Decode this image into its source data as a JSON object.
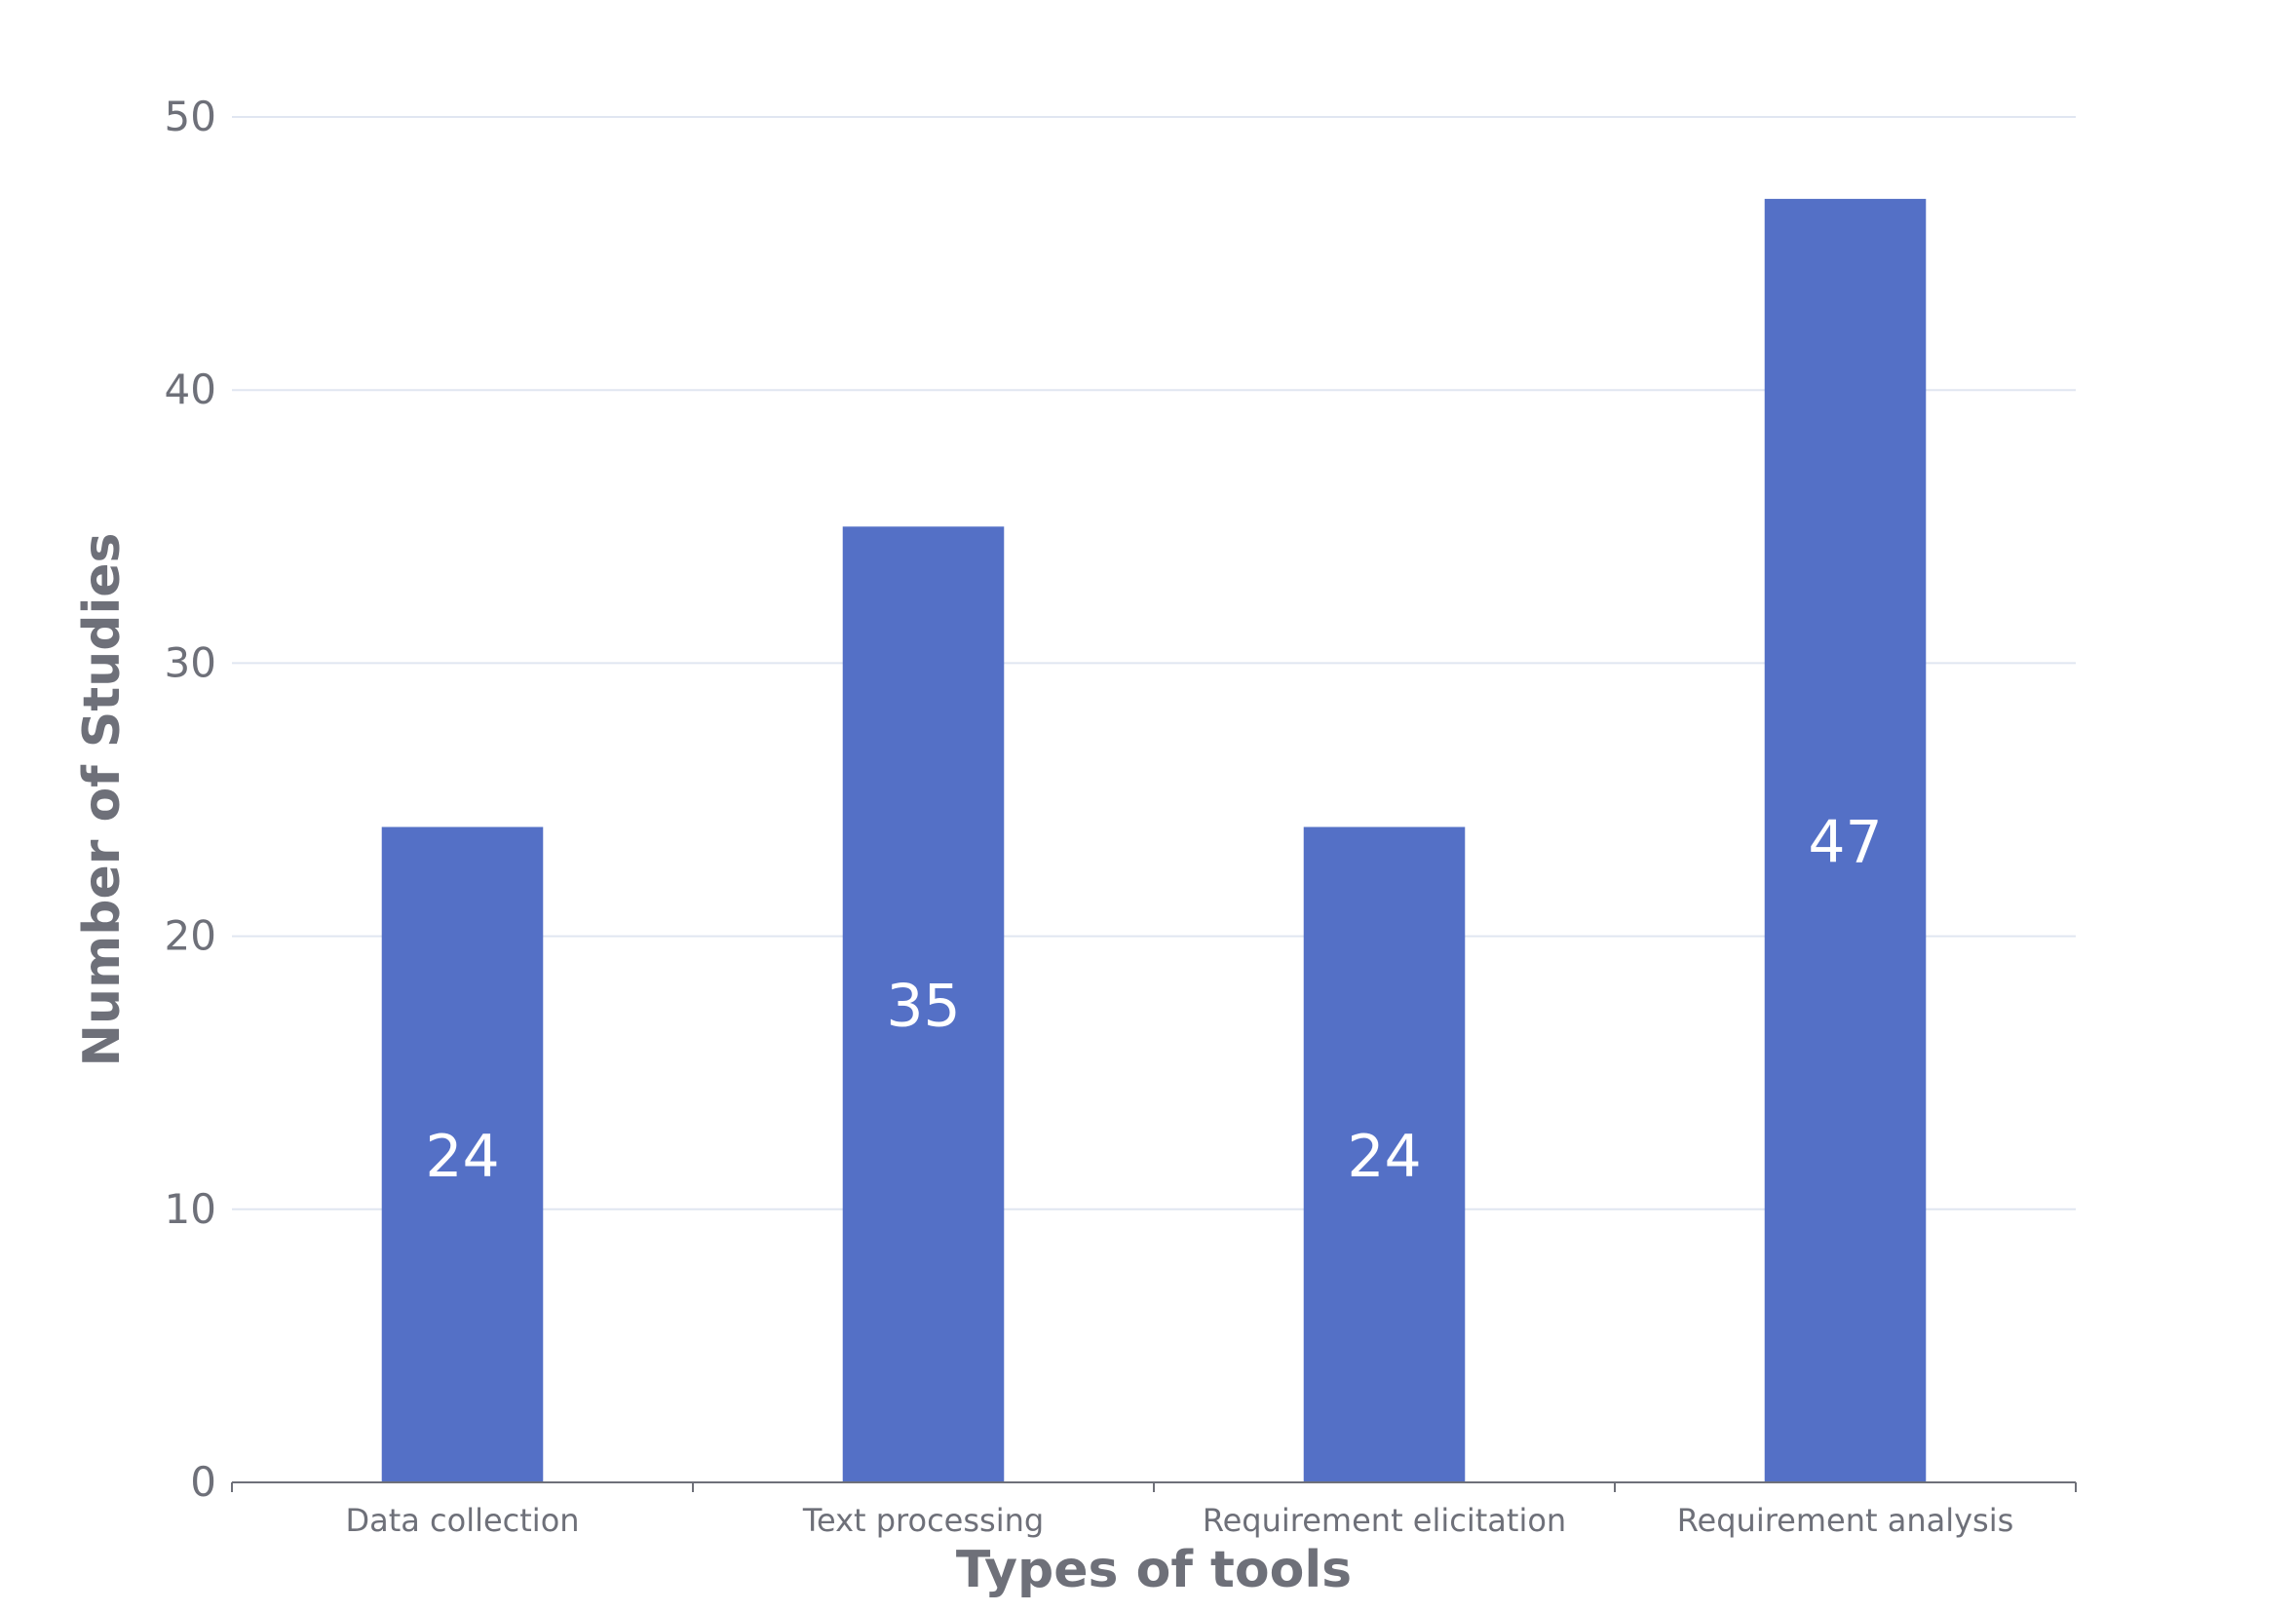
{
  "chart_data": {
    "type": "bar",
    "categories": [
      "Data collection",
      "Text processing",
      "Requirement elicitation",
      "Requirement analysis"
    ],
    "values": [
      24,
      35,
      24,
      47
    ],
    "title": "",
    "xlabel": "Types of tools",
    "ylabel": "Number of Studies",
    "ylim": [
      0,
      50
    ],
    "yticks": [
      0,
      10,
      20,
      30,
      40,
      50
    ],
    "grid": true,
    "data_labels": true,
    "bar_color": "#5470c6",
    "grid_color": "#e0e6f1",
    "axis_color": "#6e7079"
  }
}
